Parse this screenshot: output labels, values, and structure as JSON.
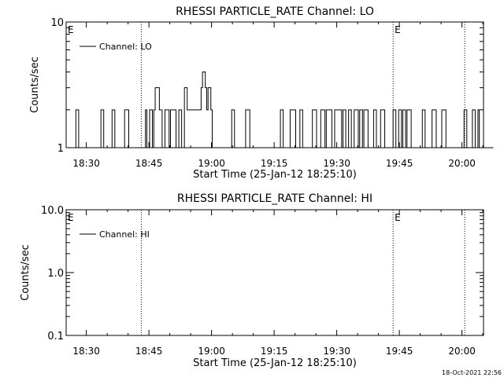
{
  "chart_data": [
    {
      "type": "line",
      "title": "RHESSI PARTICLE_RATE Channel: LO",
      "xlabel": "Start Time (25-Jan-12 18:25:10)",
      "ylabel": "Counts/sec",
      "x_ticks": [
        "18:30",
        "18:45",
        "19:00",
        "19:15",
        "19:30",
        "19:45",
        "20:00"
      ],
      "y_scale": "log",
      "y_ticks": [
        "1",
        "10"
      ],
      "ylim": [
        1,
        10
      ],
      "xlim": [
        "18:25:10",
        "20:05:10"
      ],
      "legend": {
        "label": "Channel: LO",
        "placement": "top-left"
      },
      "markers": [
        {
          "time": "18:43:10",
          "label": ""
        },
        {
          "time": "19:43:30",
          "label": "E"
        },
        {
          "time": "20:00:40",
          "label": ""
        },
        {
          "time": "18:25:10",
          "label": "E"
        }
      ],
      "series": [
        {
          "name": "Channel: LO",
          "step_seconds": 20,
          "start": "18:25:10",
          "values": [
            1,
            1,
            1,
            1,
            1,
            1,
            1,
            2,
            2,
            1,
            1,
            1,
            1,
            1,
            1,
            1,
            1,
            1,
            1,
            1,
            1,
            1,
            1,
            1,
            1,
            2,
            2,
            1,
            1,
            1,
            1,
            1,
            1,
            2,
            2,
            1,
            1,
            1,
            1,
            1,
            1,
            1,
            2,
            2,
            2,
            1,
            1,
            1,
            1,
            1,
            1,
            1,
            1,
            1,
            1,
            1,
            1,
            2,
            1,
            1,
            2,
            2,
            1,
            2,
            3,
            3,
            3,
            2,
            2,
            1,
            1,
            2,
            2,
            2,
            1,
            2,
            2,
            2,
            2,
            1,
            1,
            2,
            2,
            1,
            1,
            3,
            3,
            2,
            2,
            2,
            2,
            2,
            2,
            2,
            2,
            2,
            2,
            3,
            4,
            4,
            3,
            2,
            3,
            3,
            2,
            1,
            1,
            1,
            1,
            1,
            1,
            1,
            1,
            1,
            1,
            1,
            1,
            1,
            1,
            2,
            2,
            1,
            1,
            1,
            1,
            1,
            1,
            1,
            1,
            2,
            2,
            2,
            1,
            1,
            1,
            1,
            1,
            1,
            1,
            1,
            1,
            1,
            1,
            1,
            1,
            1,
            1,
            1,
            1,
            1,
            1,
            1,
            1,
            1,
            2,
            2,
            1,
            1,
            1,
            1,
            1,
            2,
            2,
            2,
            2,
            1,
            1,
            1,
            2,
            2,
            1,
            1,
            1,
            1,
            1,
            1,
            1,
            2,
            2,
            2,
            1,
            1,
            1,
            2,
            2,
            2,
            1,
            2,
            2,
            2,
            2,
            1,
            1,
            2,
            2,
            2,
            2,
            2,
            1,
            2,
            2,
            1,
            1,
            2,
            2,
            1,
            1,
            2,
            2,
            2,
            1,
            2,
            2,
            1,
            2,
            2,
            2,
            1,
            1,
            1,
            1,
            2,
            2,
            1,
            1,
            1,
            2,
            2,
            2,
            1,
            1,
            1,
            1,
            1,
            1,
            2,
            2,
            1,
            1,
            2,
            2,
            1,
            2,
            2,
            1,
            2,
            2,
            2,
            1,
            1,
            1,
            1,
            1,
            1,
            1,
            1,
            2,
            2,
            1,
            1,
            1,
            1,
            1,
            2,
            2,
            2,
            1,
            1,
            1,
            1,
            2,
            2,
            2,
            1,
            1,
            1,
            1,
            1,
            1,
            1,
            1,
            1,
            1,
            1,
            1,
            1,
            2,
            2,
            1,
            1,
            1,
            1,
            2,
            2,
            1,
            1,
            2,
            1,
            1,
            1,
            1,
            1,
            1,
            1,
            1,
            1,
            1
          ]
        }
      ]
    },
    {
      "type": "line",
      "title": "RHESSI PARTICLE_RATE Channel: HI",
      "xlabel": "Start Time (25-Jan-12 18:25:10)",
      "ylabel": "Counts/sec",
      "x_ticks": [
        "18:30",
        "18:45",
        "19:00",
        "19:15",
        "19:30",
        "19:45",
        "20:00"
      ],
      "y_scale": "log",
      "y_ticks": [
        "0.1",
        "1.0",
        "10.0"
      ],
      "ylim": [
        0.1,
        10
      ],
      "xlim": [
        "18:25:10",
        "20:05:10"
      ],
      "legend": {
        "label": "Channel: HI",
        "placement": "top-left"
      },
      "markers": [
        {
          "time": "18:43:10",
          "label": ""
        },
        {
          "time": "19:43:30",
          "label": "E"
        },
        {
          "time": "20:00:40",
          "label": ""
        },
        {
          "time": "18:25:10",
          "label": "E"
        }
      ],
      "series": [
        {
          "name": "Channel: HI",
          "values": []
        }
      ]
    }
  ],
  "footer": {
    "timestamp": "18-Oct-2021 22:56"
  }
}
